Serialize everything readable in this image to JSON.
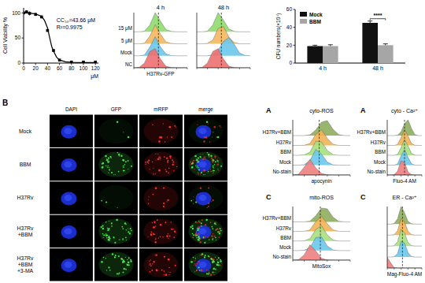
{
  "chart_data": [
    {
      "type": "line",
      "x_label": "μM",
      "y_label": "Cell Viability %",
      "annotations": [
        "CC₅₀=43.66 μM",
        "R²=0.9975"
      ],
      "xlim": [
        0,
        125
      ],
      "xticks": [
        0,
        20,
        40,
        60,
        80,
        100,
        120
      ],
      "ylim": [
        0,
        110
      ],
      "yticks": [
        0,
        50,
        100
      ],
      "series": [
        {
          "type": "line",
          "color": "#000000",
          "marker": "none",
          "x": [
            0,
            10,
            20,
            30,
            35,
            40,
            43.66,
            47,
            50,
            55,
            60,
            70,
            80,
            100,
            120
          ],
          "values": [
            100,
            99.5,
            98,
            93,
            85,
            70,
            50,
            33,
            24,
            12,
            6,
            2.5,
            1.5,
            1,
            1
          ]
        },
        {
          "type": "scatter",
          "color": "#000000",
          "marker": "square",
          "x": [
            0,
            5,
            10,
            20,
            30,
            40,
            50,
            60,
            80,
            100,
            120
          ],
          "values": [
            100,
            102,
            99,
            97,
            92,
            65,
            25,
            6,
            2,
            2,
            2
          ],
          "errors": [
            3,
            3,
            4,
            3,
            3,
            2,
            2,
            1,
            1,
            1,
            1
          ]
        }
      ]
    },
    {
      "type": "ridge",
      "title": "4 h",
      "x_label": "H37Rv-GFP",
      "xlim": [
        0,
        5
      ],
      "xticks": [
        0,
        1,
        2,
        3,
        4,
        5
      ],
      "ylim": [
        0,
        1
      ],
      "tick_labels": false,
      "threshold": 2.3,
      "x": [
        0,
        0.5,
        1,
        1.5,
        2,
        2.5,
        3,
        3.5,
        4,
        4.5,
        5
      ],
      "series": [
        {
          "name": "15 μM",
          "color": "#8fdc6e",
          "values": [
            0,
            0,
            0.03,
            0.35,
            1,
            0.55,
            0.12,
            0.02,
            0,
            0,
            0
          ]
        },
        {
          "name": "5 μM",
          "color": "#f5b860",
          "values": [
            0,
            0,
            0.03,
            0.4,
            1,
            0.5,
            0.1,
            0.02,
            0,
            0,
            0
          ]
        },
        {
          "name": "Mock",
          "color": "#6cc8ea",
          "values": [
            0,
            0,
            0.04,
            0.45,
            1,
            0.45,
            0.1,
            0.01,
            0,
            0,
            0
          ]
        },
        {
          "name": "NC",
          "color": "#f07070",
          "values": [
            0,
            0.02,
            0.25,
            0.85,
            1,
            0.45,
            0.08,
            0.01,
            0,
            0,
            0
          ]
        }
      ]
    },
    {
      "type": "ridge",
      "title": "48 h",
      "xlim": [
        0,
        5
      ],
      "xticks": [
        0,
        1,
        2,
        3,
        4,
        5
      ],
      "ylim": [
        0,
        1
      ],
      "tick_labels": false,
      "threshold": 2.3,
      "x": [
        0,
        0.5,
        1,
        1.5,
        2,
        2.5,
        3,
        3.5,
        4,
        4.5,
        5
      ],
      "series": [
        {
          "color": "#8fdc6e",
          "values": [
            0,
            0,
            0.03,
            0.35,
            1,
            0.6,
            0.15,
            0.02,
            0,
            0,
            0
          ]
        },
        {
          "color": "#f5b860",
          "values": [
            0,
            0,
            0.02,
            0.2,
            0.8,
            0.9,
            0.35,
            0.06,
            0,
            0,
            0
          ]
        },
        {
          "color": "#6cc8ea",
          "values": [
            0,
            0,
            0,
            0.05,
            0.3,
            0.75,
            0.95,
            0.6,
            0.15,
            0.02,
            0
          ]
        },
        {
          "color": "#f07070",
          "values": [
            0,
            0.02,
            0.25,
            0.85,
            1,
            0.45,
            0.08,
            0.01,
            0,
            0,
            0
          ]
        }
      ]
    },
    {
      "type": "bar",
      "y_label": "CFU numbers(×10⁴)",
      "categories": [
        "4 h",
        "48 h"
      ],
      "ylim": [
        0,
        60
      ],
      "yticks": [
        0,
        20,
        40,
        60
      ],
      "legend": "top-left",
      "annotations": [
        "****"
      ],
      "series": [
        {
          "name": "Mock",
          "color": "#111111",
          "values": [
            19,
            45
          ],
          "errors": [
            1,
            2
          ]
        },
        {
          "name": "BBM",
          "color": "#a6a6a6",
          "values": [
            19,
            20
          ],
          "errors": [
            1.5,
            1.5
          ]
        }
      ]
    },
    {
      "type": "ridge",
      "title": "cyto-ROS",
      "annotations": [
        "A"
      ],
      "x_label": "apocynin",
      "xlim": [
        0,
        5
      ],
      "xticks": [
        0,
        1,
        2,
        3,
        4,
        5
      ],
      "ylim": [
        0,
        1
      ],
      "tick_labels": false,
      "threshold": 2.3,
      "x": [
        0,
        0.5,
        1,
        1.5,
        2,
        2.5,
        3,
        3.5,
        4,
        4.5,
        5
      ],
      "series": [
        {
          "name": "H37Rv+BBM",
          "color": "#8fae5e",
          "values": [
            0,
            0,
            0,
            0.05,
            0.35,
            0.85,
            0.95,
            0.4,
            0.06,
            0,
            0
          ]
        },
        {
          "name": "H37Rv",
          "color": "#f2b455",
          "values": [
            0,
            0,
            0.01,
            0.12,
            0.7,
            1,
            0.45,
            0.08,
            0,
            0,
            0
          ]
        },
        {
          "name": "BBM",
          "color": "#a8e080",
          "values": [
            0,
            0,
            0.02,
            0.2,
            0.9,
            0.85,
            0.3,
            0.04,
            0,
            0,
            0
          ]
        },
        {
          "name": "Mock",
          "color": "#6cc8ea",
          "values": [
            0,
            0,
            0.03,
            0.3,
            1,
            0.7,
            0.2,
            0.02,
            0,
            0,
            0
          ]
        },
        {
          "name": "No-stain",
          "color": "#f08080",
          "values": [
            0,
            0.05,
            0.5,
            1,
            0.45,
            0.1,
            0.01,
            0,
            0,
            0,
            0
          ]
        }
      ]
    },
    {
      "type": "ridge",
      "title": "cyto - Ca²⁺",
      "annotations": [
        "A"
      ],
      "x_label": "Fluo-4 AM",
      "xlim": [
        0,
        5
      ],
      "xticks": [
        0,
        1,
        2,
        3,
        4,
        5
      ],
      "ylim": [
        0,
        1
      ],
      "tick_labels": false,
      "threshold": 2.5,
      "x": [
        0,
        0.5,
        1,
        1.5,
        2,
        2.5,
        3,
        3.5,
        4,
        4.5,
        5
      ],
      "series": [
        {
          "name": "H37Rv+BBM",
          "color": "#8fae5e",
          "values": [
            0,
            0,
            0,
            0.03,
            0.25,
            0.75,
            1,
            0.45,
            0.06,
            0,
            0
          ]
        },
        {
          "name": "H37Rv",
          "color": "#f2b455",
          "values": [
            0,
            0,
            0,
            0.06,
            0.5,
            1,
            0.6,
            0.12,
            0.01,
            0,
            0
          ]
        },
        {
          "name": "BBM",
          "color": "#a8e080",
          "values": [
            0,
            0,
            0,
            0.06,
            0.5,
            1,
            0.6,
            0.12,
            0.01,
            0,
            0
          ]
        },
        {
          "name": "Mock",
          "color": "#6cc8ea",
          "values": [
            0,
            0,
            0,
            0.08,
            0.6,
            1,
            0.5,
            0.1,
            0,
            0,
            0
          ]
        },
        {
          "name": "No-stain",
          "color": "#f08080",
          "values": [
            0,
            0,
            0.02,
            0.25,
            0.9,
            0.8,
            0.2,
            0.02,
            0,
            0,
            0
          ]
        }
      ]
    },
    {
      "type": "ridge",
      "title": "mito-ROS",
      "annotations": [
        "C"
      ],
      "x_label": "MitoSox",
      "xlim": [
        0,
        5
      ],
      "xticks": [
        0,
        1,
        2,
        3,
        4,
        5
      ],
      "ylim": [
        0,
        1
      ],
      "tick_labels": false,
      "threshold": 2.4,
      "x": [
        0,
        0.5,
        1,
        1.5,
        2,
        2.5,
        3,
        3.5,
        4,
        4.5,
        5
      ],
      "series": [
        {
          "name": "H37Rv+BBM",
          "color": "#8fae5e",
          "values": [
            0,
            0,
            0,
            0.05,
            0.4,
            0.9,
            0.85,
            0.3,
            0.04,
            0,
            0
          ]
        },
        {
          "name": "H37Rv",
          "color": "#f2b455",
          "values": [
            0,
            0,
            0.01,
            0.1,
            0.65,
            1,
            0.5,
            0.1,
            0.01,
            0,
            0
          ]
        },
        {
          "name": "BBM",
          "color": "#a8e080",
          "values": [
            0,
            0,
            0.01,
            0.15,
            0.75,
            1,
            0.4,
            0.06,
            0,
            0,
            0
          ]
        },
        {
          "name": "Mock",
          "color": "#6cc8ea",
          "values": [
            0,
            0,
            0.02,
            0.2,
            0.85,
            0.9,
            0.3,
            0.04,
            0,
            0,
            0
          ]
        },
        {
          "name": "No-stain",
          "color": "#f08080",
          "values": [
            0,
            0.03,
            0.35,
            1,
            0.6,
            0.12,
            0.01,
            0,
            0,
            0,
            0
          ]
        }
      ]
    },
    {
      "type": "ridge",
      "title": "ER - Ca²⁺",
      "annotations": [
        "C"
      ],
      "x_label": "Mag-Fluo-4 AM",
      "xlim": [
        0,
        5
      ],
      "xticks": [
        0,
        1,
        2,
        3,
        4,
        5
      ],
      "ylim": [
        0,
        1
      ],
      "tick_labels": false,
      "threshold": 2.2,
      "x": [
        0,
        0.5,
        1,
        1.5,
        2,
        2.5,
        3,
        3.5,
        4,
        4.5,
        5
      ],
      "series": [
        {
          "color": "#8fae5e",
          "values": [
            0,
            0,
            0.03,
            0.3,
            1,
            0.65,
            0.15,
            0.02,
            0,
            0,
            0
          ]
        },
        {
          "color": "#f2b455",
          "values": [
            0,
            0,
            0.02,
            0.25,
            0.95,
            0.75,
            0.2,
            0.03,
            0,
            0,
            0
          ]
        },
        {
          "color": "#a8e080",
          "values": [
            0,
            0,
            0.02,
            0.25,
            0.95,
            0.75,
            0.2,
            0.03,
            0,
            0,
            0
          ]
        },
        {
          "color": "#6cc8ea",
          "values": [
            0,
            0,
            0.02,
            0.2,
            0.9,
            0.8,
            0.25,
            0.03,
            0,
            0,
            0
          ]
        },
        {
          "color": "#f08080",
          "values": [
            0.6,
            0.3,
            0.02,
            0,
            0,
            0,
            0,
            0,
            0,
            0,
            0
          ]
        }
      ]
    }
  ],
  "image_panel": {
    "label": "B",
    "columns": [
      "DAPI",
      "GFP",
      "mRFP",
      "merge"
    ],
    "rows": [
      "Mock",
      "BBM",
      "H37Rv",
      "H37Rv+BBM",
      "H37Rv+BBM+3-MA"
    ]
  }
}
